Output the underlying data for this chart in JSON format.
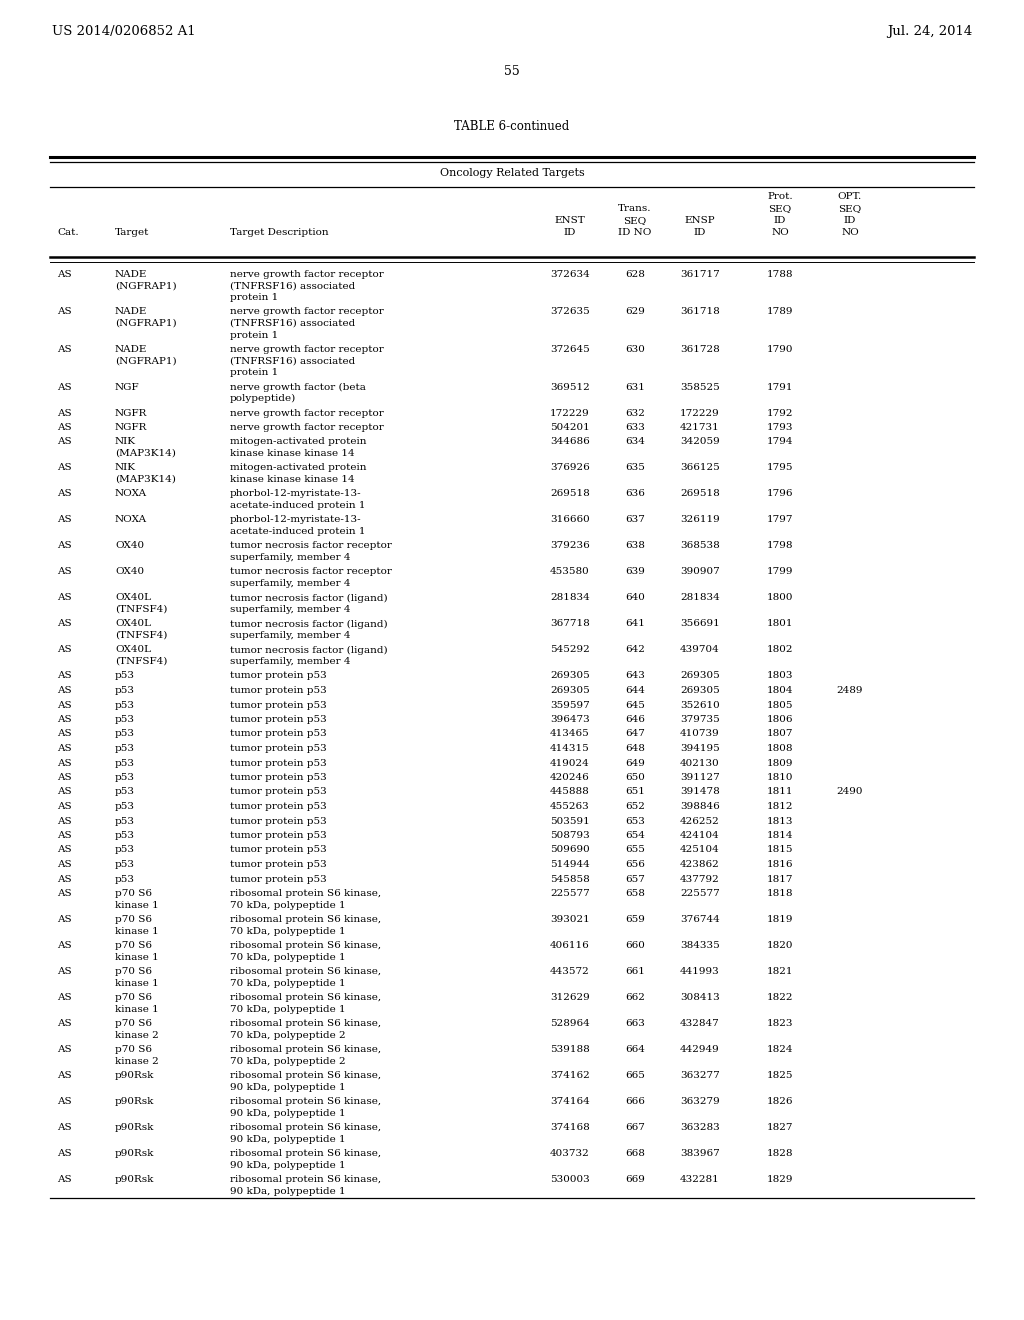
{
  "title_left": "US 2014/0206852 A1",
  "title_right": "Jul. 24, 2014",
  "page_num": "55",
  "table_title": "TABLE 6-continued",
  "section_header": "Oncology Related Targets",
  "rows": [
    [
      "AS",
      "NADE\n(NGFRAP1)",
      "nerve growth factor receptor\n(TNFRSF16) associated\nprotein 1",
      "372634",
      "628",
      "361717",
      "1788",
      ""
    ],
    [
      "AS",
      "NADE\n(NGFRAP1)",
      "nerve growth factor receptor\n(TNFRSF16) associated\nprotein 1",
      "372635",
      "629",
      "361718",
      "1789",
      ""
    ],
    [
      "AS",
      "NADE\n(NGFRAP1)",
      "nerve growth factor receptor\n(TNFRSF16) associated\nprotein 1",
      "372645",
      "630",
      "361728",
      "1790",
      ""
    ],
    [
      "AS",
      "NGF",
      "nerve growth factor (beta\npolypeptide)",
      "369512",
      "631",
      "358525",
      "1791",
      ""
    ],
    [
      "AS",
      "NGFR",
      "nerve growth factor receptor",
      "172229",
      "632",
      "172229",
      "1792",
      ""
    ],
    [
      "AS",
      "NGFR",
      "nerve growth factor receptor",
      "504201",
      "633",
      "421731",
      "1793",
      ""
    ],
    [
      "AS",
      "NIK\n(MAP3K14)",
      "mitogen-activated protein\nkinase kinase kinase 14",
      "344686",
      "634",
      "342059",
      "1794",
      ""
    ],
    [
      "AS",
      "NIK\n(MAP3K14)",
      "mitogen-activated protein\nkinase kinase kinase 14",
      "376926",
      "635",
      "366125",
      "1795",
      ""
    ],
    [
      "AS",
      "NOXA",
      "phorbol-12-myristate-13-\nacetate-induced protein 1",
      "269518",
      "636",
      "269518",
      "1796",
      ""
    ],
    [
      "AS",
      "NOXA",
      "phorbol-12-myristate-13-\nacetate-induced protein 1",
      "316660",
      "637",
      "326119",
      "1797",
      ""
    ],
    [
      "AS",
      "OX40",
      "tumor necrosis factor receptor\nsuperfamily, member 4",
      "379236",
      "638",
      "368538",
      "1798",
      ""
    ],
    [
      "AS",
      "OX40",
      "tumor necrosis factor receptor\nsuperfamily, member 4",
      "453580",
      "639",
      "390907",
      "1799",
      ""
    ],
    [
      "AS",
      "OX40L\n(TNFSF4)",
      "tumor necrosis factor (ligand)\nsuperfamily, member 4",
      "281834",
      "640",
      "281834",
      "1800",
      ""
    ],
    [
      "AS",
      "OX40L\n(TNFSF4)",
      "tumor necrosis factor (ligand)\nsuperfamily, member 4",
      "367718",
      "641",
      "356691",
      "1801",
      ""
    ],
    [
      "AS",
      "OX40L\n(TNFSF4)",
      "tumor necrosis factor (ligand)\nsuperfamily, member 4",
      "545292",
      "642",
      "439704",
      "1802",
      ""
    ],
    [
      "AS",
      "p53",
      "tumor protein p53",
      "269305",
      "643",
      "269305",
      "1803",
      ""
    ],
    [
      "AS",
      "p53",
      "tumor protein p53",
      "269305",
      "644",
      "269305",
      "1804",
      "2489"
    ],
    [
      "AS",
      "p53",
      "tumor protein p53",
      "359597",
      "645",
      "352610",
      "1805",
      ""
    ],
    [
      "AS",
      "p53",
      "tumor protein p53",
      "396473",
      "646",
      "379735",
      "1806",
      ""
    ],
    [
      "AS",
      "p53",
      "tumor protein p53",
      "413465",
      "647",
      "410739",
      "1807",
      ""
    ],
    [
      "AS",
      "p53",
      "tumor protein p53",
      "414315",
      "648",
      "394195",
      "1808",
      ""
    ],
    [
      "AS",
      "p53",
      "tumor protein p53",
      "419024",
      "649",
      "402130",
      "1809",
      ""
    ],
    [
      "AS",
      "p53",
      "tumor protein p53",
      "420246",
      "650",
      "391127",
      "1810",
      ""
    ],
    [
      "AS",
      "p53",
      "tumor protein p53",
      "445888",
      "651",
      "391478",
      "1811",
      "2490"
    ],
    [
      "AS",
      "p53",
      "tumor protein p53",
      "455263",
      "652",
      "398846",
      "1812",
      ""
    ],
    [
      "AS",
      "p53",
      "tumor protein p53",
      "503591",
      "653",
      "426252",
      "1813",
      ""
    ],
    [
      "AS",
      "p53",
      "tumor protein p53",
      "508793",
      "654",
      "424104",
      "1814",
      ""
    ],
    [
      "AS",
      "p53",
      "tumor protein p53",
      "509690",
      "655",
      "425104",
      "1815",
      ""
    ],
    [
      "AS",
      "p53",
      "tumor protein p53",
      "514944",
      "656",
      "423862",
      "1816",
      ""
    ],
    [
      "AS",
      "p53",
      "tumor protein p53",
      "545858",
      "657",
      "437792",
      "1817",
      ""
    ],
    [
      "AS",
      "p70 S6\nkinase 1",
      "ribosomal protein S6 kinase,\n70 kDa, polypeptide 1",
      "225577",
      "658",
      "225577",
      "1818",
      ""
    ],
    [
      "AS",
      "p70 S6\nkinase 1",
      "ribosomal protein S6 kinase,\n70 kDa, polypeptide 1",
      "393021",
      "659",
      "376744",
      "1819",
      ""
    ],
    [
      "AS",
      "p70 S6\nkinase 1",
      "ribosomal protein S6 kinase,\n70 kDa, polypeptide 1",
      "406116",
      "660",
      "384335",
      "1820",
      ""
    ],
    [
      "AS",
      "p70 S6\nkinase 1",
      "ribosomal protein S6 kinase,\n70 kDa, polypeptide 1",
      "443572",
      "661",
      "441993",
      "1821",
      ""
    ],
    [
      "AS",
      "p70 S6\nkinase 1",
      "ribosomal protein S6 kinase,\n70 kDa, polypeptide 1",
      "312629",
      "662",
      "308413",
      "1822",
      ""
    ],
    [
      "AS",
      "p70 S6\nkinase 2",
      "ribosomal protein S6 kinase,\n70 kDa, polypeptide 2",
      "528964",
      "663",
      "432847",
      "1823",
      ""
    ],
    [
      "AS",
      "p70 S6\nkinase 2",
      "ribosomal protein S6 kinase,\n70 kDa, polypeptide 2",
      "539188",
      "664",
      "442949",
      "1824",
      ""
    ],
    [
      "AS",
      "p90Rsk",
      "ribosomal protein S6 kinase,\n90 kDa, polypeptide 1",
      "374162",
      "665",
      "363277",
      "1825",
      ""
    ],
    [
      "AS",
      "p90Rsk",
      "ribosomal protein S6 kinase,\n90 kDa, polypeptide 1",
      "374164",
      "666",
      "363279",
      "1826",
      ""
    ],
    [
      "AS",
      "p90Rsk",
      "ribosomal protein S6 kinase,\n90 kDa, polypeptide 1",
      "374168",
      "667",
      "363283",
      "1827",
      ""
    ],
    [
      "AS",
      "p90Rsk",
      "ribosomal protein S6 kinase,\n90 kDa, polypeptide 1",
      "403732",
      "668",
      "383967",
      "1828",
      ""
    ],
    [
      "AS",
      "p90Rsk",
      "ribosomal protein S6 kinase,\n90 kDa, polypeptide 1",
      "530003",
      "669",
      "432281",
      "1829",
      ""
    ]
  ],
  "bg_color": "#ffffff",
  "text_color": "#000000",
  "fontsize_header": 9.5,
  "fontsize_table": 7.5,
  "fontsize_page": 9.0
}
